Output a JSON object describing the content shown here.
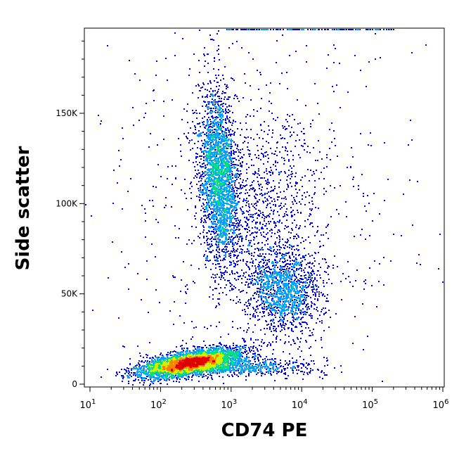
{
  "chart_data": {
    "type": "scatter",
    "style": "density-pseudocolor",
    "xlabel": "CD74 PE",
    "ylabel": "Side scatter",
    "x_scale": "log",
    "xlim": [
      10,
      1000000
    ],
    "ylim": [
      0,
      196000
    ],
    "x_ticks": [
      {
        "value": 10,
        "base": "10",
        "exp": "1"
      },
      {
        "value": 100,
        "base": "10",
        "exp": "2"
      },
      {
        "value": 1000,
        "base": "10",
        "exp": "3"
      },
      {
        "value": 10000,
        "base": "10",
        "exp": "4"
      },
      {
        "value": 100000,
        "base": "10",
        "exp": "5"
      },
      {
        "value": 1000000,
        "base": "10",
        "exp": "6"
      }
    ],
    "y_ticks": [
      {
        "value": 0,
        "label": "0"
      },
      {
        "value": 50000,
        "label": "50K"
      },
      {
        "value": 100000,
        "label": "100K"
      },
      {
        "value": 150000,
        "label": "150K"
      }
    ],
    "populations": [
      {
        "center": [
          260,
          12000
        ],
        "count": 4200
      },
      {
        "center": [
          650,
          115000
        ],
        "count": 2600
      },
      {
        "center": [
          5500,
          52000
        ],
        "count": 1400
      },
      {
        "center": [
          3000,
          95000
        ],
        "count": 800
      }
    ],
    "density_colors": [
      "#0000ff",
      "#00a0ff",
      "#00e080",
      "#d0f000",
      "#ff8000",
      "#e00000"
    ],
    "grid": false
  }
}
